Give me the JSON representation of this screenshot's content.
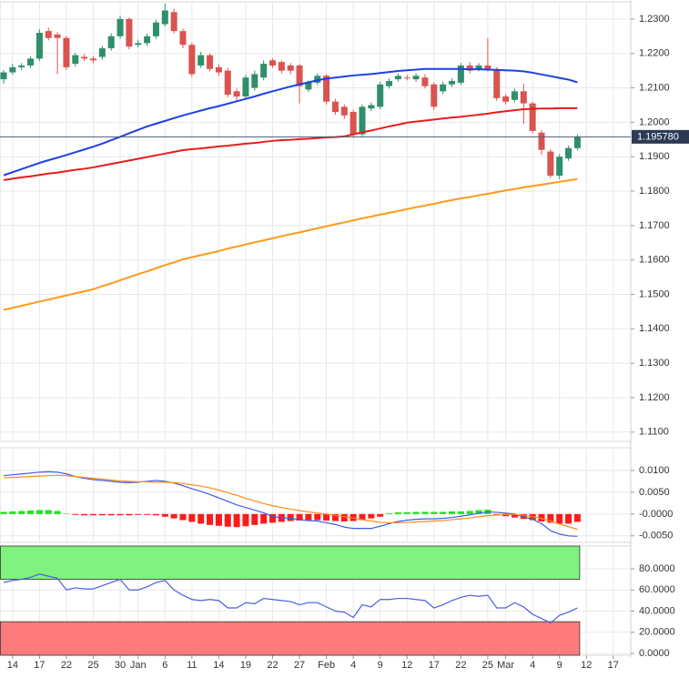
{
  "chart_data": [
    {
      "type": "candlestick",
      "categories": [
        null,
        "14",
        null,
        null,
        "17",
        null,
        null,
        "22",
        null,
        null,
        "25",
        null,
        null,
        "30",
        null,
        "Jan",
        null,
        null,
        "6",
        null,
        null,
        "11",
        null,
        null,
        "14",
        null,
        null,
        "19",
        null,
        null,
        "22",
        null,
        null,
        "27",
        null,
        null,
        "Feb",
        null,
        null,
        "4",
        null,
        null,
        "9",
        null,
        null,
        "12",
        null,
        null,
        "17",
        null,
        null,
        "22",
        null,
        null,
        "25",
        null,
        "Mar",
        null,
        null,
        "4",
        null,
        null,
        "9",
        null,
        null,
        "12",
        null,
        null,
        "17"
      ],
      "open": [
        1.2125,
        1.2145,
        1.216,
        1.2165,
        1.2185,
        1.2265,
        1.2255,
        1.2245,
        1.217,
        1.219,
        1.2185,
        1.219,
        1.2215,
        1.225,
        1.23,
        1.2225,
        1.223,
        1.225,
        1.2285,
        1.232,
        1.2265,
        1.2225,
        1.2165,
        1.2195,
        1.216,
        1.215,
        1.209,
        1.2075,
        1.21,
        1.213,
        1.218,
        1.2175,
        1.2165,
        1.2165,
        1.2095,
        1.2115,
        1.2135,
        1.206,
        1.2045,
        1.203,
        1.1965,
        1.204,
        1.2045,
        1.2105,
        1.2125,
        1.213,
        1.2125,
        1.213,
        1.211,
        1.209,
        1.211,
        1.2115,
        1.2165,
        1.2155,
        1.2165,
        1.2155,
        1.2075,
        1.2065,
        1.209,
        1.2055,
        1.197,
        1.1915,
        1.1845,
        1.1895,
        1.1925,
        null,
        null,
        null,
        null
      ],
      "high": [
        1.2152,
        1.217,
        1.2172,
        1.2192,
        1.227,
        1.2275,
        1.2262,
        1.2252,
        1.2202,
        1.2198,
        1.2192,
        1.2222,
        1.2258,
        1.231,
        1.2305,
        1.224,
        1.2258,
        1.2298,
        1.2345,
        1.233,
        1.2272,
        1.2232,
        1.2205,
        1.22,
        1.2168,
        1.2158,
        1.2098,
        1.2138,
        1.215,
        1.218,
        1.2185,
        1.218,
        1.2172,
        1.217,
        1.2122,
        1.2142,
        1.214,
        1.2068,
        1.2052,
        1.2036,
        1.2052,
        1.2058,
        1.2118,
        1.2128,
        1.2142,
        1.2138,
        1.2142,
        1.214,
        1.2115,
        1.2118,
        1.2128,
        1.2172,
        1.2175,
        1.2172,
        1.2245,
        1.216,
        1.2082,
        1.2098,
        1.2112,
        1.206,
        1.1978,
        1.1922,
        1.1908,
        1.1932,
        1.1965,
        null,
        null,
        null,
        null
      ],
      "low": [
        1.2112,
        1.2138,
        1.2152,
        1.2158,
        1.2178,
        1.2238,
        1.214,
        1.2152,
        1.2162,
        1.2178,
        1.2172,
        1.2182,
        1.2208,
        1.2242,
        1.2212,
        1.2218,
        1.2222,
        1.2242,
        1.2278,
        1.2258,
        1.2215,
        1.2132,
        1.2158,
        1.2148,
        1.2135,
        1.2072,
        1.2062,
        1.2068,
        1.2092,
        1.2122,
        1.2158,
        1.2142,
        1.214,
        1.2055,
        1.2088,
        1.2108,
        1.2052,
        1.2022,
        1.201,
        1.1955,
        1.1958,
        1.2032,
        1.2038,
        1.2098,
        1.2118,
        1.2122,
        1.2118,
        1.2098,
        1.2035,
        1.2082,
        1.2102,
        1.2108,
        1.2142,
        1.2148,
        1.2148,
        1.2062,
        1.2052,
        1.2058,
        1.1995,
        1.1968,
        1.1905,
        1.1838,
        1.1835,
        1.1888,
        1.1918,
        null,
        null,
        null,
        null
      ],
      "close": [
        1.2145,
        1.216,
        1.2165,
        1.2185,
        1.226,
        1.2245,
        1.2245,
        1.216,
        1.2195,
        1.2185,
        1.218,
        1.2215,
        1.225,
        1.23,
        1.222,
        1.223,
        1.225,
        1.229,
        1.2325,
        1.2265,
        1.2225,
        1.214,
        1.2195,
        1.2155,
        1.2145,
        1.208,
        1.2075,
        1.213,
        1.214,
        1.217,
        1.2165,
        1.215,
        1.215,
        1.2105,
        1.2115,
        1.2135,
        1.206,
        1.203,
        1.202,
        1.1965,
        1.2045,
        1.205,
        1.211,
        1.212,
        1.2135,
        1.2128,
        1.2135,
        1.2105,
        1.2045,
        1.211,
        1.212,
        1.2165,
        1.215,
        1.2165,
        1.2155,
        1.207,
        1.206,
        1.209,
        1.2055,
        1.1975,
        1.192,
        1.1845,
        1.19,
        1.1925,
        1.19578,
        null,
        null,
        null,
        null
      ],
      "up_color": "#2f8f6a",
      "down_color": "#d9534f",
      "series": [
        {
          "color": "#1e40e6",
          "values": [
            1.1846,
            1.1855,
            1.1864,
            1.1873,
            1.1882,
            1.189,
            1.1897,
            1.1905,
            1.1913,
            1.1921,
            1.1929,
            1.1938,
            1.1948,
            1.1958,
            1.1968,
            1.1978,
            1.1988,
            1.1996,
            1.2004,
            1.2012,
            1.202,
            1.2027,
            1.2034,
            1.2041,
            1.2047,
            1.2054,
            1.2061,
            1.2068,
            1.2075,
            1.2083,
            1.209,
            1.2097,
            1.2104,
            1.211,
            1.2116,
            1.2122,
            1.2127,
            1.213,
            1.2133,
            1.2136,
            1.2138,
            1.214,
            1.2143,
            1.2146,
            1.2149,
            1.2151,
            1.2153,
            1.2155,
            1.2155,
            1.2155,
            1.2155,
            1.2155,
            1.2154,
            1.2154,
            1.2153,
            1.2152,
            1.2151,
            1.215,
            1.2148,
            1.2144,
            1.2139,
            1.2134,
            1.2129,
            1.2124,
            1.2116,
            null,
            null,
            null,
            null
          ]
        },
        {
          "color": "#e81c1c",
          "values": [
            1.1832,
            1.1836,
            1.184,
            1.1843,
            1.1847,
            1.1851,
            1.1854,
            1.1858,
            1.1862,
            1.1865,
            1.1869,
            1.1874,
            1.1879,
            1.1884,
            1.1889,
            1.1894,
            1.1899,
            1.1904,
            1.1909,
            1.1914,
            1.1919,
            1.1922,
            1.1924,
            1.1927,
            1.193,
            1.1932,
            1.1935,
            1.1938,
            1.194,
            1.1943,
            1.1946,
            1.1948,
            1.1949,
            1.1951,
            1.1952,
            1.1954,
            1.1956,
            1.1957,
            1.1959,
            1.1965,
            1.1971,
            1.1976,
            1.1982,
            1.1988,
            1.1993,
            1.1999,
            1.2002,
            1.2005,
            1.2008,
            1.2011,
            1.2014,
            1.2016,
            1.2019,
            1.2022,
            1.2025,
            1.2029,
            1.2032,
            1.2035,
            1.2038,
            1.2039,
            1.204,
            1.204,
            1.2041,
            1.2041,
            1.2041,
            null,
            null,
            null,
            null
          ]
        },
        {
          "color": "#ff9a1a",
          "values": [
            1.1455,
            1.1461,
            1.1467,
            1.1473,
            1.1479,
            1.1485,
            1.1491,
            1.1497,
            1.1503,
            1.1509,
            1.1515,
            1.1524,
            1.1532,
            1.1541,
            1.155,
            1.1559,
            1.1567,
            1.1576,
            1.1585,
            1.1593,
            1.1602,
            1.1608,
            1.1614,
            1.162,
            1.1626,
            1.1633,
            1.1639,
            1.1645,
            1.1651,
            1.1657,
            1.1663,
            1.1669,
            1.1675,
            1.168,
            1.1686,
            1.1692,
            1.1698,
            1.1704,
            1.1709,
            1.1715,
            1.1721,
            1.1726,
            1.1732,
            1.1737,
            1.1742,
            1.1748,
            1.1753,
            1.1758,
            1.1763,
            1.1769,
            1.1774,
            1.1779,
            1.1783,
            1.1788,
            1.1792,
            1.1797,
            1.1802,
            1.1806,
            1.1811,
            1.1815,
            1.1819,
            1.1823,
            1.1827,
            1.1831,
            1.1835,
            null,
            null,
            null,
            null
          ]
        }
      ],
      "ylim": [
        1.1073,
        1.235
      ],
      "yticks": [
        {
          "value": 1.23,
          "label": "1.2300"
        },
        {
          "value": 1.22,
          "label": "1.2200"
        },
        {
          "value": 1.21,
          "label": "1.2100"
        },
        {
          "value": 1.2,
          "label": "1.2000"
        },
        {
          "value": 1.19,
          "label": "1.1900"
        },
        {
          "value": 1.18,
          "label": "1.1800"
        },
        {
          "value": 1.17,
          "label": "1.1700"
        },
        {
          "value": 1.16,
          "label": "1.1600"
        },
        {
          "value": 1.15,
          "label": "1.1500"
        },
        {
          "value": 1.14,
          "label": "1.1400"
        },
        {
          "value": 1.13,
          "label": "1.1300"
        },
        {
          "value": 1.12,
          "label": "1.1200"
        },
        {
          "value": 1.11,
          "label": "1.1100"
        }
      ],
      "last_price": {
        "value": 1.19578,
        "label": "1.195780"
      },
      "grid": true
    },
    {
      "type": "line",
      "series": [
        {
          "color": "#3f5be8",
          "values": [
            0.0088,
            0.009,
            0.0092,
            0.0094,
            0.0096,
            0.0097,
            0.0096,
            0.0092,
            0.0086,
            0.0082,
            0.0079,
            0.0077,
            0.0075,
            0.0073,
            0.0072,
            0.0073,
            0.0075,
            0.0077,
            0.0075,
            0.0071,
            0.0065,
            0.0058,
            0.0052,
            0.0045,
            0.0037,
            0.0029,
            0.0021,
            0.0015,
            0.0009,
            0.0003,
            -0.0006,
            -0.0008,
            -0.001,
            -0.0013,
            -0.0015,
            -0.0016,
            -0.002,
            -0.0024,
            -0.003,
            -0.0033,
            -0.0033,
            -0.0033,
            -0.0028,
            -0.0022,
            -0.0017,
            -0.0014,
            -0.0012,
            -0.0011,
            -0.0011,
            -0.001,
            -0.0008,
            -0.0005,
            -0.0002,
            0.0002,
            0.0005,
            0.0004,
            0.0002,
            0.0,
            -0.0007,
            -0.0012,
            -0.0022,
            -0.0038,
            -0.0046,
            -0.005,
            -0.0051,
            null,
            null,
            null,
            null
          ]
        },
        {
          "color": "#ff8c1a",
          "values": [
            0.0083,
            0.0084,
            0.0085,
            0.0086,
            0.0087,
            0.0088,
            0.0089,
            0.0088,
            0.0086,
            0.0084,
            0.0082,
            0.008,
            0.0078,
            0.0076,
            0.0075,
            0.0074,
            0.0074,
            0.0073,
            0.0073,
            0.0072,
            0.007,
            0.0067,
            0.0064,
            0.006,
            0.0055,
            0.0049,
            0.0043,
            0.0036,
            0.003,
            0.0024,
            0.0019,
            0.0015,
            0.0011,
            0.0008,
            0.0005,
            0.0002,
            0.0,
            -0.0003,
            -0.0006,
            -0.0009,
            -0.0013,
            -0.0016,
            -0.0019,
            -0.002,
            -0.002,
            -0.0019,
            -0.0018,
            -0.0017,
            -0.0016,
            -0.0015,
            -0.0013,
            -0.0011,
            -0.0009,
            -0.0006,
            -0.0004,
            -0.0002,
            -0.0001,
            -0.0001,
            -0.0003,
            -0.0006,
            -0.001,
            -0.0016,
            -0.0023,
            -0.0029,
            -0.0035,
            null,
            null,
            null,
            null
          ]
        }
      ],
      "histogram": {
        "up_color": "#1de51d",
        "down_color": "#ff1a1a",
        "values": [
          0.0005,
          0.0006,
          0.0007,
          0.0008,
          0.0009,
          0.0009,
          0.0007,
          0.0001,
          -0.0002,
          -0.0003,
          -0.0003,
          -0.0003,
          -0.0003,
          -0.0003,
          -0.0003,
          -0.0002,
          -0.0002,
          -0.0003,
          -0.0006,
          -0.001,
          -0.0014,
          -0.0018,
          -0.0022,
          -0.0025,
          -0.0027,
          -0.0029,
          -0.003,
          -0.0028,
          -0.0025,
          -0.0022,
          -0.002,
          -0.0018,
          -0.0016,
          -0.0015,
          -0.0014,
          -0.0014,
          -0.0015,
          -0.0016,
          -0.0017,
          -0.0016,
          -0.0014,
          -0.001,
          -0.0006,
          0.0002,
          0.0004,
          0.0004,
          0.0005,
          0.0005,
          0.0005,
          0.0005,
          0.0006,
          0.0006,
          0.0007,
          0.0009,
          0.001,
          -0.0003,
          -0.0005,
          -0.0008,
          -0.0011,
          -0.0014,
          -0.0017,
          -0.002,
          -0.0022,
          -0.0022,
          -0.0018,
          null,
          null,
          null,
          null
        ]
      },
      "ylim": [
        -0.0065,
        0.0152
      ],
      "yticks": [
        {
          "value": 0.01,
          "label": "0.0100"
        },
        {
          "value": 0.005,
          "label": "0.0050"
        },
        {
          "value": 0,
          "label": "-0.0000"
        },
        {
          "value": -0.005,
          "label": "-0.0050"
        }
      ],
      "grid": true
    },
    {
      "type": "line",
      "series": [
        {
          "color": "#4a5fe0",
          "values": [
            67,
            69,
            70,
            72,
            75,
            73,
            71,
            60,
            62,
            61,
            61,
            64,
            67,
            70,
            60,
            60,
            63,
            67,
            69,
            60,
            55,
            51,
            50,
            51,
            50,
            43,
            43,
            48,
            47,
            52,
            51,
            50,
            49,
            46,
            48,
            48,
            44,
            40,
            39,
            34,
            46,
            44,
            51,
            51,
            52,
            52,
            51,
            50,
            43,
            46,
            50,
            53,
            55,
            54,
            55,
            43,
            43,
            48,
            44,
            37,
            33,
            29,
            36,
            39,
            43,
            null,
            null,
            null,
            null
          ]
        }
      ],
      "overbought": 70,
      "oversold": 30,
      "overbought_color": "#7ff27f",
      "oversold_color": "#ff7b7b",
      "ylim": [
        -1.7,
        101.5
      ],
      "yticks": [
        {
          "value": 80,
          "label": "80.0000"
        },
        {
          "value": 60,
          "label": "60.0000"
        },
        {
          "value": 40,
          "label": "40.0000"
        },
        {
          "value": 20,
          "label": "20.0000"
        },
        {
          "value": 0,
          "label": "0.0000"
        }
      ],
      "grid": true
    }
  ]
}
